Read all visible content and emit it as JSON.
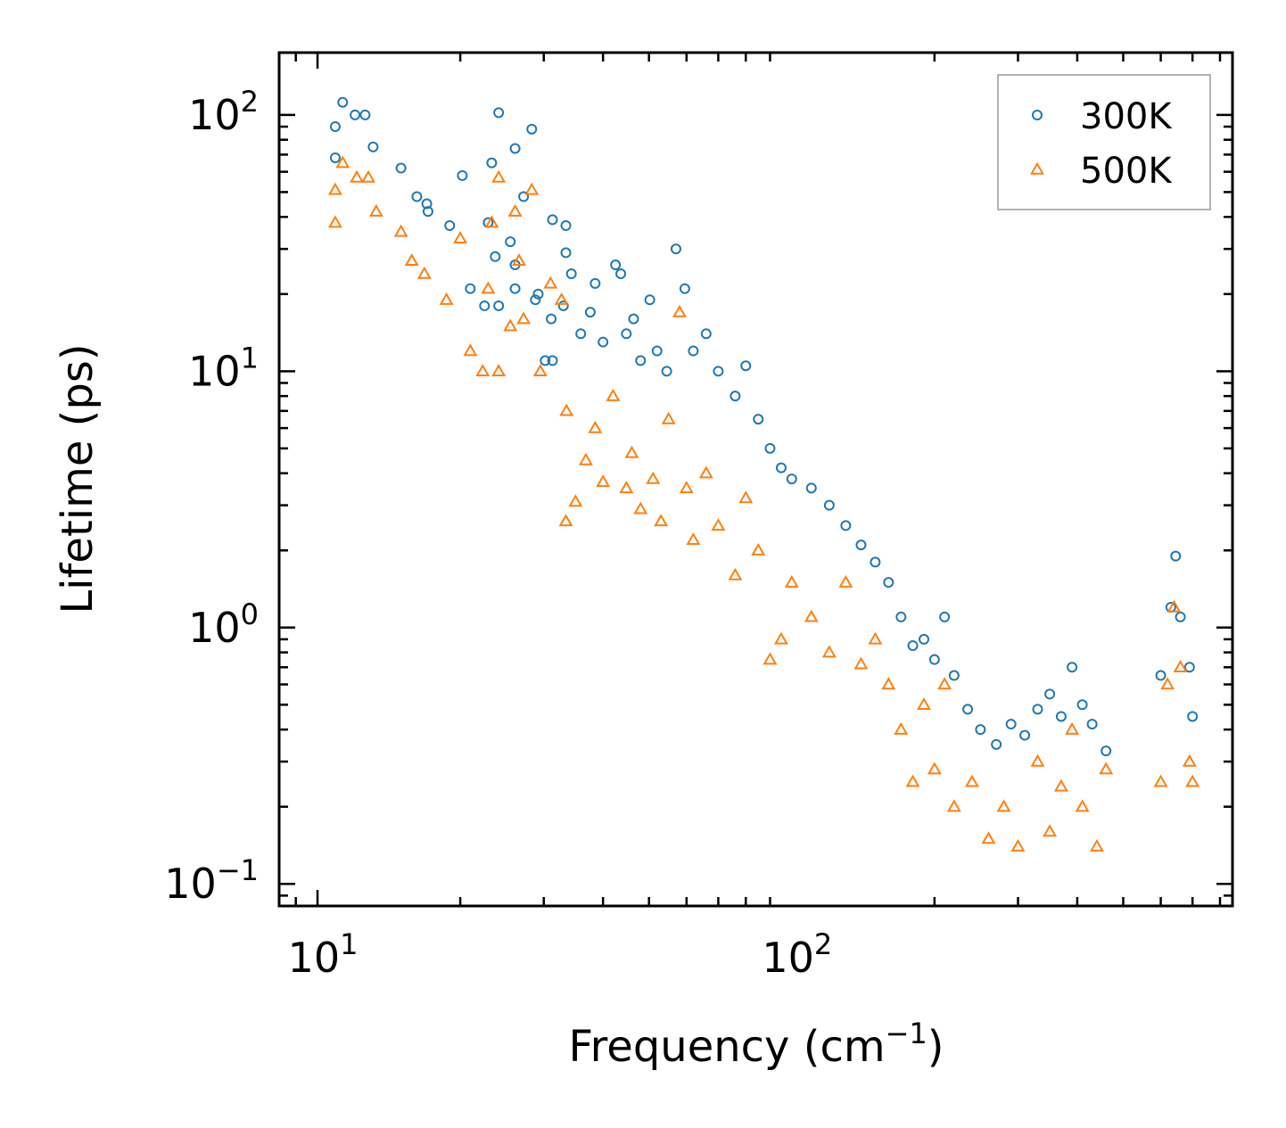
{
  "chart_data": {
    "type": "scatter",
    "title": "",
    "xlabel": "Frequency (cm",
    "xlabel_sup": "−1",
    "xlabel_end": ")",
    "ylabel": "Lifetime (ps)",
    "xscale": "log",
    "yscale": "log",
    "xlim": [
      8.3,
      850
    ],
    "ylim": [
      0.082,
      175
    ],
    "x_ticks": [
      {
        "value": 10,
        "base": "10",
        "exp": "1"
      },
      {
        "value": 100,
        "base": "10",
        "exp": "2"
      }
    ],
    "y_ticks": [
      {
        "value": 0.1,
        "base": "10",
        "exp": "−1"
      },
      {
        "value": 1,
        "base": "10",
        "exp": "0"
      },
      {
        "value": 10,
        "base": "10",
        "exp": "1"
      },
      {
        "value": 100,
        "base": "10",
        "exp": "2"
      }
    ],
    "legend_position": "top-right",
    "series": [
      {
        "name": "300K",
        "marker": "circle",
        "color": "#1f77b4",
        "points": [
          [
            10.9,
            90
          ],
          [
            11.3,
            112
          ],
          [
            12,
            100
          ],
          [
            12.6,
            100
          ],
          [
            13.1,
            75
          ],
          [
            10.9,
            68
          ],
          [
            15,
            62
          ],
          [
            16.2,
            48
          ],
          [
            17.0,
            45
          ],
          [
            17.1,
            42
          ],
          [
            19,
            37
          ],
          [
            20.2,
            58
          ],
          [
            21,
            21
          ],
          [
            22.5,
            18
          ],
          [
            22.9,
            38
          ],
          [
            23.3,
            65
          ],
          [
            23.7,
            28
          ],
          [
            24.1,
            102
          ],
          [
            24.1,
            18
          ],
          [
            25.5,
            32
          ],
          [
            26.1,
            74
          ],
          [
            26.1,
            26
          ],
          [
            26.1,
            21
          ],
          [
            27.2,
            48
          ],
          [
            28.3,
            88
          ],
          [
            28.8,
            19
          ],
          [
            29.2,
            20
          ],
          [
            31.3,
            39
          ],
          [
            31.1,
            16
          ],
          [
            33.4,
            37
          ],
          [
            33.4,
            29
          ],
          [
            30.2,
            11
          ],
          [
            31.3,
            11
          ],
          [
            33,
            18
          ],
          [
            34.3,
            24
          ],
          [
            35.9,
            14
          ],
          [
            37.6,
            17
          ],
          [
            38.5,
            22
          ],
          [
            40,
            13
          ],
          [
            42.5,
            26
          ],
          [
            43.6,
            24
          ],
          [
            44.8,
            14
          ],
          [
            46.4,
            16
          ],
          [
            48,
            11
          ],
          [
            50.2,
            19
          ],
          [
            52,
            12
          ],
          [
            54.5,
            10
          ],
          [
            57,
            30
          ],
          [
            59.5,
            21
          ],
          [
            62,
            12
          ],
          [
            66,
            14
          ],
          [
            70,
            10
          ],
          [
            76,
            8
          ],
          [
            80,
            10.5
          ],
          [
            85,
            6.5
          ],
          [
            90,
            5
          ],
          [
            95,
            4.2
          ],
          [
            100,
            3.8
          ],
          [
            110,
            3.5
          ],
          [
            120,
            3
          ],
          [
            130,
            2.5
          ],
          [
            140,
            2.1
          ],
          [
            150,
            1.8
          ],
          [
            160,
            1.5
          ],
          [
            170,
            1.1
          ],
          [
            180,
            0.85
          ],
          [
            190,
            0.9
          ],
          [
            200,
            0.75
          ],
          [
            210,
            1.1
          ],
          [
            220,
            0.65
          ],
          [
            235,
            0.48
          ],
          [
            250,
            0.4
          ],
          [
            270,
            0.35
          ],
          [
            290,
            0.42
          ],
          [
            310,
            0.38
          ],
          [
            330,
            0.48
          ],
          [
            350,
            0.55
          ],
          [
            370,
            0.45
          ],
          [
            390,
            0.7
          ],
          [
            410,
            0.5
          ],
          [
            430,
            0.42
          ],
          [
            460,
            0.33
          ],
          [
            600,
            0.65
          ],
          [
            630,
            1.2
          ],
          [
            645,
            1.9
          ],
          [
            660,
            1.1
          ],
          [
            690,
            0.7
          ],
          [
            700,
            0.45
          ]
        ]
      },
      {
        "name": "500K",
        "marker": "triangle",
        "color": "#ff7f0e",
        "points": [
          [
            10.9,
            51
          ],
          [
            10.9,
            38
          ],
          [
            11.3,
            65
          ],
          [
            12.1,
            57
          ],
          [
            12.8,
            57
          ],
          [
            13.3,
            42
          ],
          [
            15,
            35
          ],
          [
            15.8,
            27
          ],
          [
            16.8,
            24
          ],
          [
            18.7,
            19
          ],
          [
            20,
            33
          ],
          [
            21,
            12
          ],
          [
            22.3,
            10
          ],
          [
            22.9,
            21
          ],
          [
            23.3,
            38
          ],
          [
            24.1,
            57
          ],
          [
            24.1,
            10
          ],
          [
            25.5,
            15
          ],
          [
            26.1,
            42
          ],
          [
            26.6,
            27
          ],
          [
            27.2,
            16
          ],
          [
            28.3,
            51
          ],
          [
            29.5,
            10
          ],
          [
            31,
            22
          ],
          [
            32.7,
            19
          ],
          [
            33.5,
            7
          ],
          [
            33.4,
            2.6
          ],
          [
            35,
            3.1
          ],
          [
            36.8,
            4.5
          ],
          [
            38.5,
            6
          ],
          [
            40,
            3.7
          ],
          [
            42,
            8
          ],
          [
            44.8,
            3.5
          ],
          [
            46,
            4.8
          ],
          [
            48,
            2.9
          ],
          [
            51,
            3.8
          ],
          [
            53,
            2.6
          ],
          [
            55,
            6.5
          ],
          [
            58,
            17
          ],
          [
            60,
            3.5
          ],
          [
            62,
            2.2
          ],
          [
            66,
            4
          ],
          [
            70,
            2.5
          ],
          [
            76,
            1.6
          ],
          [
            80,
            3.2
          ],
          [
            85,
            2.0
          ],
          [
            90,
            0.75
          ],
          [
            95,
            0.9
          ],
          [
            100,
            1.5
          ],
          [
            110,
            1.1
          ],
          [
            120,
            0.8
          ],
          [
            130,
            1.5
          ],
          [
            140,
            0.72
          ],
          [
            150,
            0.9
          ],
          [
            160,
            0.6
          ],
          [
            170,
            0.4
          ],
          [
            180,
            0.25
          ],
          [
            190,
            0.5
          ],
          [
            200,
            0.28
          ],
          [
            210,
            0.6
          ],
          [
            220,
            0.2
          ],
          [
            240,
            0.25
          ],
          [
            260,
            0.15
          ],
          [
            280,
            0.2
          ],
          [
            300,
            0.14
          ],
          [
            330,
            0.3
          ],
          [
            350,
            0.16
          ],
          [
            370,
            0.24
          ],
          [
            390,
            0.4
          ],
          [
            410,
            0.2
          ],
          [
            440,
            0.14
          ],
          [
            460,
            0.28
          ],
          [
            600,
            0.25
          ],
          [
            620,
            0.6
          ],
          [
            640,
            1.2
          ],
          [
            660,
            0.7
          ],
          [
            690,
            0.3
          ],
          [
            700,
            0.25
          ]
        ]
      }
    ]
  }
}
